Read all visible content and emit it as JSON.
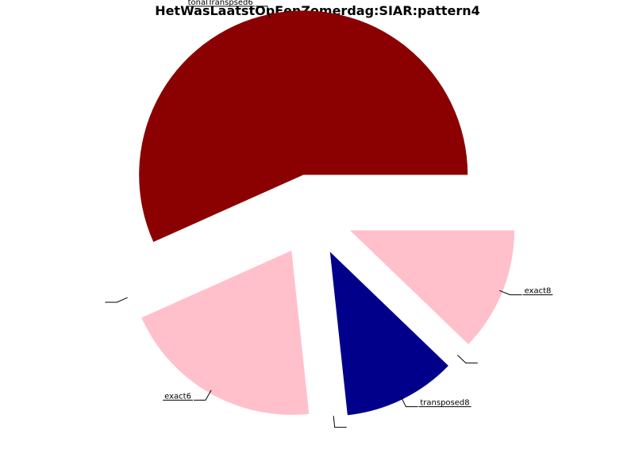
{
  "chart_data": {
    "type": "pie",
    "title": "HetWasLaatstOpEenZomerdag:SIAR:pattern4",
    "slices": [
      {
        "label": "tonalTranspsed6",
        "value": 0.567,
        "color": "#8b0000"
      },
      {
        "label": "",
        "value": 0.0,
        "color": "#ffc0cb"
      },
      {
        "label": "exact6",
        "value": 0.2,
        "color": "#ffc0cb"
      },
      {
        "label": "",
        "value": 0.0,
        "color": "#00008b"
      },
      {
        "label": "transposed8",
        "value": 0.111,
        "color": "#00008b"
      },
      {
        "label": "",
        "value": 0.0,
        "color": "#ffc0cb"
      },
      {
        "label": "exact8",
        "value": 0.122,
        "color": "#ffc0cb"
      }
    ],
    "start_angle_deg": 0,
    "direction": "counterclockwise",
    "exploded": true
  }
}
